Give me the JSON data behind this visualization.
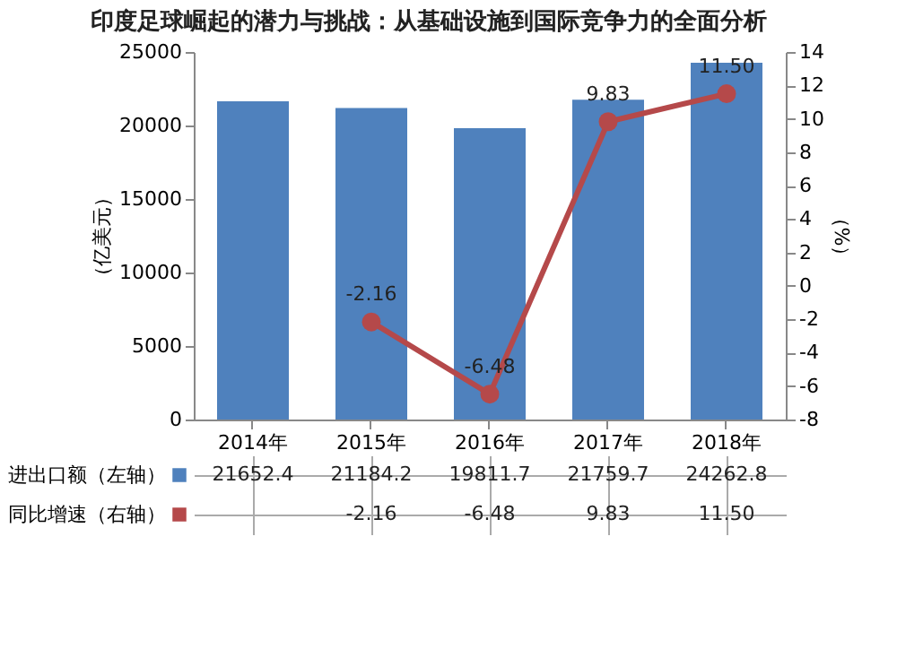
{
  "chart_data": {
    "type": "bar",
    "title": "印度足球崛起的潜力与挑战：从基础设施到国际竞争力的全面分析",
    "ylabel": "（亿美元）",
    "y2label": "（%）",
    "categories": [
      "2014年",
      "2015年",
      "2016年",
      "2017年",
      "2018年"
    ],
    "series": [
      {
        "name": "进出口额（左轴）",
        "color": "#4f81bd",
        "values": [
          21652.4,
          21184.2,
          19811.7,
          21759.7,
          24262.8
        ],
        "value_labels": [
          "21652.4",
          "21184.2",
          "19811.7",
          "21759.7",
          "24262.8"
        ]
      },
      {
        "name": "同比增速（右轴）",
        "type": "line",
        "axis": "y2",
        "color": "#b5494a",
        "values": [
          null,
          -2.16,
          -6.48,
          9.83,
          11.5
        ],
        "value_labels": [
          null,
          "-2.16",
          "-6.48",
          "9.83",
          "11.50"
        ]
      }
    ],
    "ylim": [
      0,
      25000
    ],
    "yticks": [
      0,
      5000,
      10000,
      15000,
      20000,
      25000
    ],
    "y2lim": [
      -8,
      14
    ],
    "y2ticks": [
      -8,
      -6,
      -4,
      -2,
      0,
      2,
      4,
      6,
      8,
      10,
      12,
      14
    ],
    "marker": "circle",
    "line_style": "solid",
    "grid": false,
    "legend": "bottom left"
  }
}
